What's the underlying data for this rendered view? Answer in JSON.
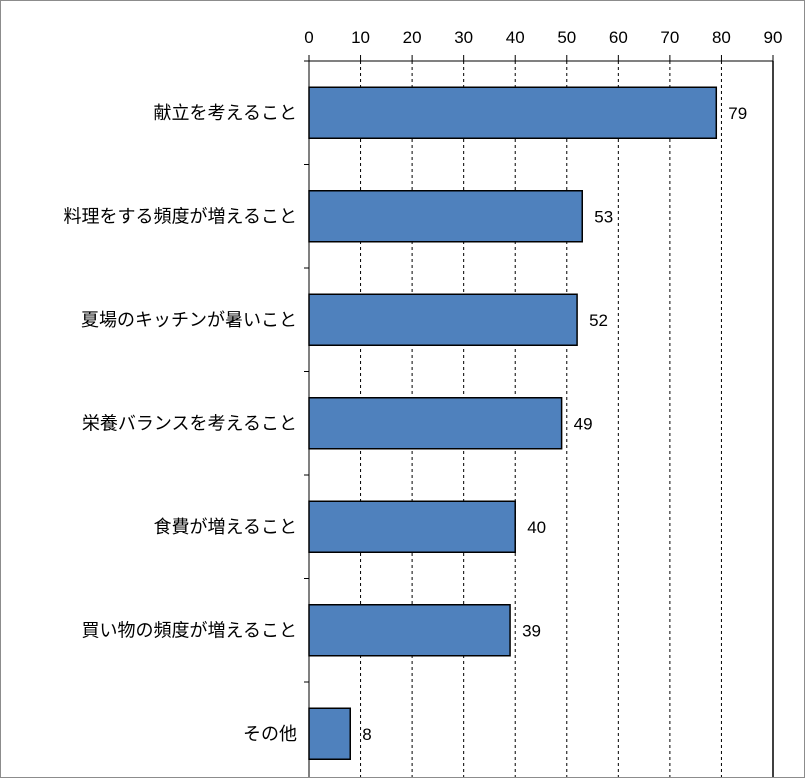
{
  "chart_data": {
    "type": "bar",
    "orientation": "horizontal",
    "categories": [
      "献立を考えること",
      "料理をする頻度が増えること",
      "夏場のキッチンが暑いこと",
      "栄養バランスを考えること",
      "食費が増えること",
      "買い物の頻度が増えること",
      "その他"
    ],
    "values": [
      79,
      53,
      52,
      49,
      40,
      39,
      8
    ],
    "xlim": [
      0,
      90
    ],
    "xticks": [
      0,
      10,
      20,
      30,
      40,
      50,
      60,
      70,
      80,
      90
    ],
    "axis_position": "top",
    "grid": "vertical-dashed",
    "bar_color": "#4f81bd",
    "bar_border_color": "#000000",
    "data_labels": true,
    "title": "",
    "xlabel": "",
    "ylabel": ""
  }
}
